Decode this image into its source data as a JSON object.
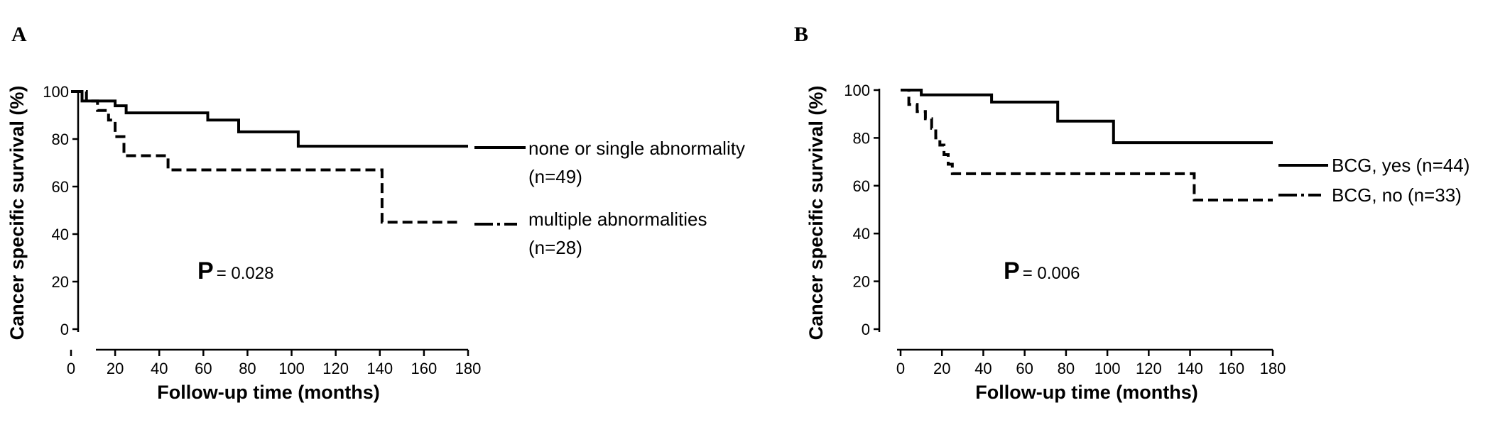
{
  "chart_data": [
    {
      "type": "line",
      "panel_label": "A",
      "xlabel": "Follow-up time (months)",
      "ylabel": "Cancer specific survival (%)",
      "xlim": [
        -5,
        180
      ],
      "ylim": [
        -12,
        100
      ],
      "x_ticks": [
        0,
        20,
        40,
        60,
        80,
        100,
        120,
        140,
        160,
        180
      ],
      "y_ticks": [
        0,
        20,
        40,
        60,
        80,
        100
      ],
      "grid": false,
      "legend_position": "right",
      "p_label": "P",
      "p_value": "= 0.028",
      "series": [
        {
          "legend_lines": [
            "none or single abnormality",
            "(n=49)"
          ],
          "style": "solid",
          "x": [
            0,
            5,
            5,
            10,
            10,
            20,
            20,
            25,
            25,
            62,
            62,
            76,
            76,
            103,
            103,
            180
          ],
          "y": [
            100,
            100,
            96,
            96,
            96,
            96,
            94,
            94,
            91,
            91,
            88,
            88,
            83,
            83,
            77,
            77
          ]
        },
        {
          "legend_lines": [
            "multiple abnormalities",
            "(n=28)"
          ],
          "style": "dashed",
          "x": [
            0,
            7,
            7,
            12,
            12,
            17,
            17,
            20,
            20,
            24,
            24,
            44,
            44,
            141,
            141,
            175
          ],
          "y": [
            100,
            100,
            96,
            96,
            92,
            92,
            88,
            88,
            81,
            81,
            73,
            73,
            67,
            67,
            45,
            45
          ]
        }
      ]
    },
    {
      "type": "line",
      "panel_label": "B",
      "xlabel": "Follow-up time (months)",
      "ylabel": "Cancer specific survival (%)",
      "xlim": [
        -5,
        180
      ],
      "ylim": [
        -12,
        100
      ],
      "x_ticks": [
        0,
        20,
        40,
        60,
        80,
        100,
        120,
        140,
        160,
        180
      ],
      "y_ticks": [
        0,
        20,
        40,
        60,
        80,
        100
      ],
      "grid": false,
      "legend_position": "right",
      "p_label": "P",
      "p_value": "= 0.006",
      "series": [
        {
          "legend_lines": [
            "BCG, yes (n=44)"
          ],
          "style": "solid",
          "x": [
            0,
            10,
            10,
            44,
            44,
            76,
            76,
            103,
            103,
            180
          ],
          "y": [
            100,
            100,
            98,
            98,
            95,
            95,
            87,
            87,
            78,
            78
          ]
        },
        {
          "legend_lines": [
            "BCG, no (n=33)"
          ],
          "style": "dashed",
          "x": [
            0,
            4,
            4,
            8,
            8,
            12,
            12,
            15,
            15,
            17,
            17,
            19,
            19,
            21,
            21,
            23,
            23,
            25,
            25,
            142,
            142,
            180
          ],
          "y": [
            100,
            100,
            94,
            94,
            91,
            91,
            88,
            88,
            84,
            84,
            80,
            80,
            77,
            77,
            73,
            73,
            69,
            69,
            65,
            65,
            54,
            54
          ]
        }
      ]
    }
  ]
}
